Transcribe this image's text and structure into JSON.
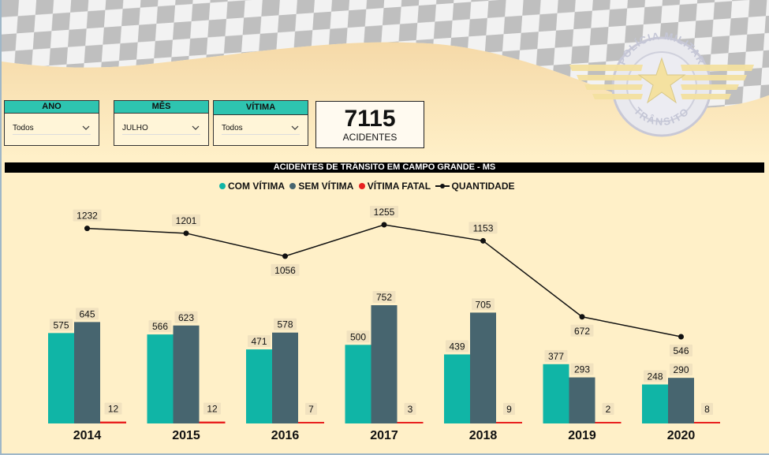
{
  "filters": [
    {
      "title": "ANO",
      "value": "Todos"
    },
    {
      "title": "MÊS",
      "value": "JULHO"
    },
    {
      "title": "VÍTIMA",
      "value": "Todos"
    }
  ],
  "kpi": {
    "value": "7115",
    "label": "ACIDENTES"
  },
  "logo": {
    "top_text": "POLÍCIA MILITAR",
    "bottom_text": "TRÂNSITO"
  },
  "colors": {
    "com_vitima": "#10b5a6",
    "sem_vitima": "#47656f",
    "vitima_fatal": "#e8201f",
    "quantidade": "#111111"
  },
  "chart_data": {
    "type": "bar",
    "title": "ACIDENTES DE TRÂNSITO EM CAMPO GRANDE - MS",
    "categories": [
      "2014",
      "2015",
      "2016",
      "2017",
      "2018",
      "2019",
      "2020"
    ],
    "series": [
      {
        "name": "COM VÍTIMA",
        "type": "bar",
        "values": [
          575,
          566,
          471,
          500,
          439,
          377,
          248
        ]
      },
      {
        "name": "SEM VÍTIMA",
        "type": "bar",
        "values": [
          645,
          623,
          578,
          752,
          705,
          293,
          290
        ]
      },
      {
        "name": "VÍTIMA FATAL",
        "type": "bar",
        "values": [
          12,
          12,
          7,
          3,
          9,
          2,
          8
        ]
      },
      {
        "name": "QUANTIDADE",
        "type": "line",
        "values": [
          1232,
          1201,
          1056,
          1255,
          1153,
          672,
          546
        ]
      }
    ],
    "legend_position": "top-center",
    "grid": false
  }
}
